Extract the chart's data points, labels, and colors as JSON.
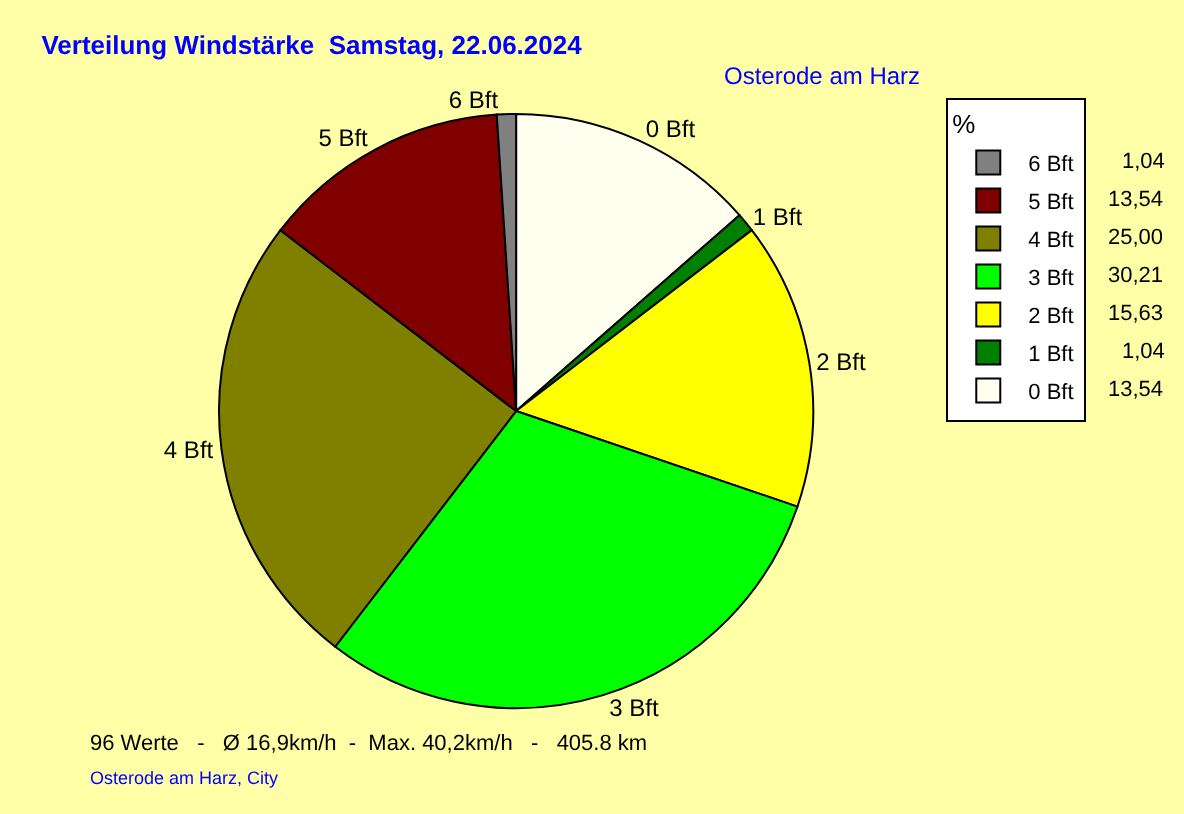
{
  "chart_data": {
    "type": "pie",
    "title": "Verteilung Windstärke  Samstag, 22.06.2024",
    "subtitle": "Osterode am Harz",
    "categories": [
      "0 Bft",
      "1 Bft",
      "2 Bft",
      "3 Bft",
      "4 Bft",
      "5 Bft",
      "6 Bft"
    ],
    "values": [
      13.54,
      1.04,
      15.63,
      30.21,
      25.0,
      13.54,
      1.04
    ],
    "value_labels": [
      "13,54",
      "1,04",
      "15,63",
      "30,21",
      "25,00",
      "13,54",
      "1,04"
    ],
    "colors": [
      "#fffff0",
      "#008000",
      "#ffff00",
      "#00ff00",
      "#808000",
      "#800000",
      "#808080"
    ],
    "legend": "top right",
    "legend_title": "%",
    "annotations": [
      "96 Werte   -   Ø 16,9km/h  -  Max. 40,2km/h   -   405.8 km",
      "Osterode am Harz, City"
    ]
  }
}
